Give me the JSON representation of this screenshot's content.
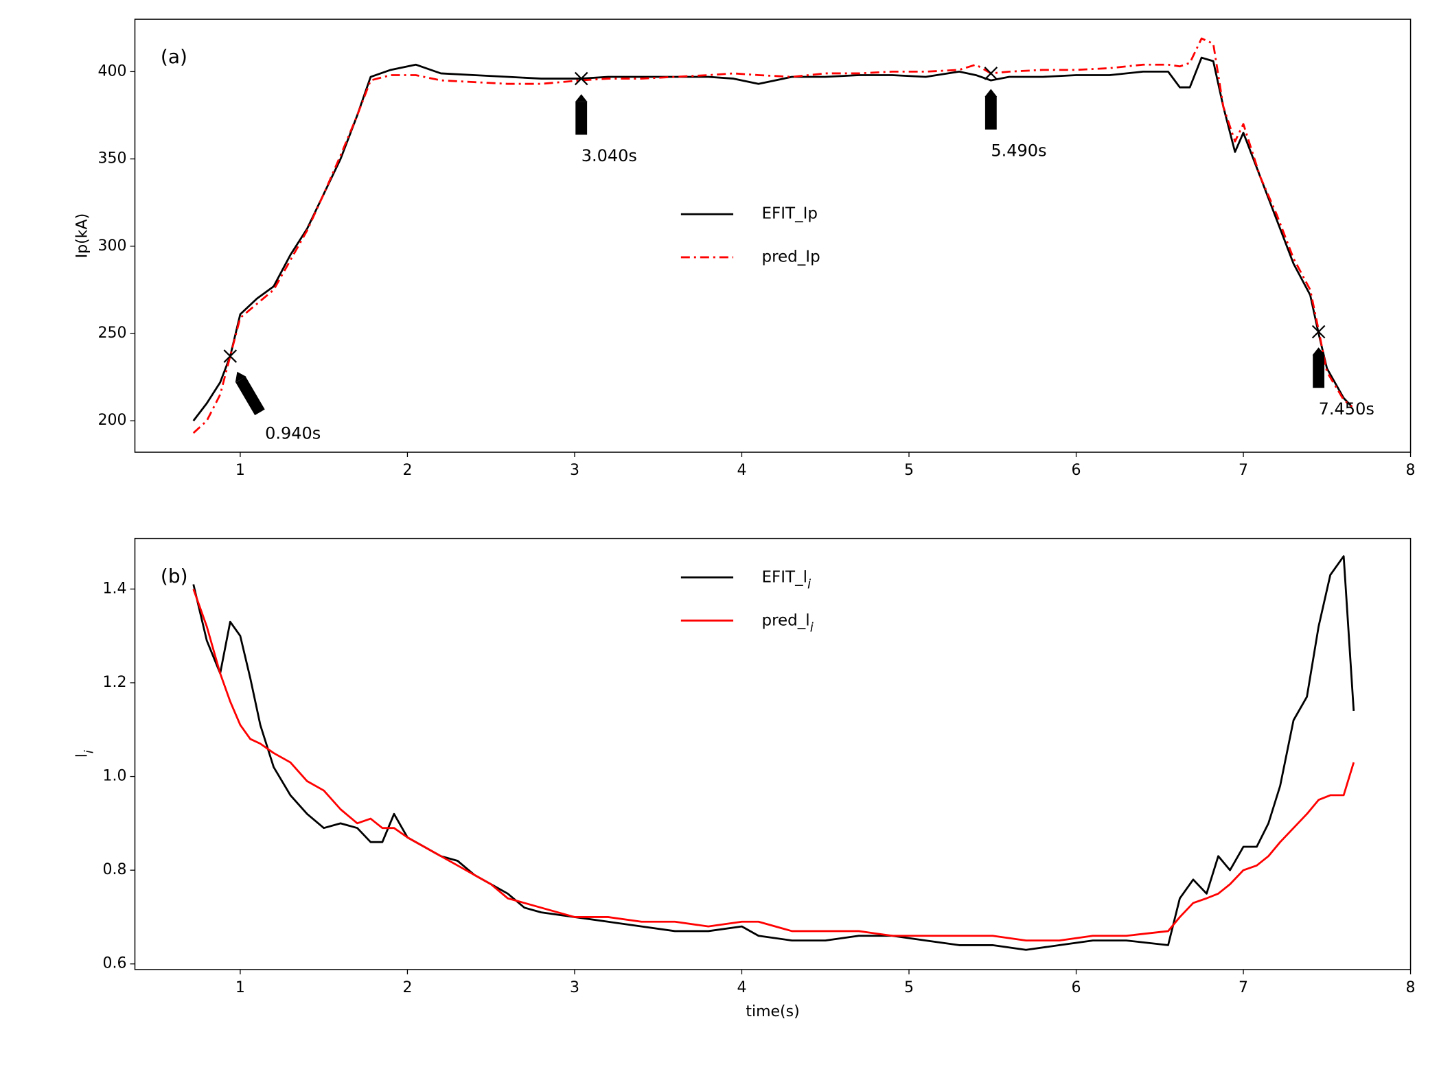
{
  "chart_data": [
    {
      "type": "line",
      "panel_label": "(a)",
      "ylabel": "Ip(kA)",
      "x": [
        0.72,
        0.8,
        0.88,
        0.94,
        1.0,
        1.1,
        1.2,
        1.3,
        1.4,
        1.5,
        1.6,
        1.7,
        1.78,
        1.9,
        2.05,
        2.2,
        2.4,
        2.6,
        2.8,
        3.04,
        3.2,
        3.4,
        3.6,
        3.8,
        3.95,
        4.1,
        4.3,
        4.5,
        4.7,
        4.9,
        5.1,
        5.3,
        5.4,
        5.49,
        5.6,
        5.8,
        6.0,
        6.2,
        6.4,
        6.55,
        6.62,
        6.68,
        6.75,
        6.82,
        6.88,
        6.95,
        7.0,
        7.1,
        7.2,
        7.3,
        7.4,
        7.45,
        7.5,
        7.6,
        7.65
      ],
      "series": [
        {
          "name": "EFIT_Ip",
          "color": "#000000",
          "style": "solid",
          "values": [
            200,
            210,
            222,
            237,
            261,
            270,
            277,
            295,
            310,
            330,
            350,
            375,
            397,
            401,
            404,
            399,
            398,
            397,
            396,
            396,
            397,
            397,
            397,
            397,
            396,
            393,
            397,
            397,
            398,
            398,
            397,
            400,
            398,
            395,
            397,
            397,
            398,
            398,
            400,
            400,
            391,
            391,
            408,
            406,
            380,
            354,
            365,
            340,
            315,
            290,
            272,
            250,
            230,
            213,
            208
          ]
        },
        {
          "name": "pred_Ip",
          "color": "#ff0000",
          "style": "dashdot",
          "values": [
            193,
            200,
            215,
            237,
            259,
            267,
            275,
            292,
            309,
            330,
            352,
            375,
            395,
            398,
            398,
            395,
            394,
            393,
            393,
            395,
            396,
            396,
            397,
            398,
            399,
            398,
            397,
            399,
            399,
            400,
            400,
            401,
            404,
            399,
            400,
            401,
            401,
            402,
            404,
            404,
            403,
            405,
            419,
            416,
            380,
            360,
            370,
            340,
            318,
            293,
            275,
            252,
            228,
            212,
            208
          ]
        }
      ],
      "annotations": [
        {
          "text": "0.940s",
          "x": 0.94,
          "y": 237
        },
        {
          "text": "3.040s",
          "x": 3.04,
          "y": 396
        },
        {
          "text": "5.490s",
          "x": 5.49,
          "y": 399
        },
        {
          "text": "7.450s",
          "x": 7.45,
          "y": 251
        }
      ],
      "xlim": [
        0.37,
        8.0
      ],
      "xticks": [
        1,
        2,
        3,
        4,
        5,
        6,
        7,
        8
      ],
      "ylim": [
        182,
        430
      ],
      "yticks": [
        200,
        250,
        300,
        350,
        400
      ],
      "legend": "center",
      "grid": false
    },
    {
      "type": "line",
      "panel_label": "(b)",
      "ylabel": "li",
      "xlabel": "time(s)",
      "subscript_last": true,
      "x": [
        0.72,
        0.8,
        0.88,
        0.94,
        1.0,
        1.06,
        1.12,
        1.2,
        1.3,
        1.4,
        1.5,
        1.6,
        1.7,
        1.78,
        1.85,
        1.92,
        2.0,
        2.1,
        2.2,
        2.3,
        2.4,
        2.5,
        2.6,
        2.7,
        2.8,
        3.0,
        3.2,
        3.4,
        3.6,
        3.8,
        4.0,
        4.1,
        4.3,
        4.5,
        4.7,
        4.9,
        5.1,
        5.3,
        5.5,
        5.7,
        5.9,
        6.1,
        6.3,
        6.55,
        6.62,
        6.7,
        6.78,
        6.85,
        6.92,
        7.0,
        7.08,
        7.15,
        7.22,
        7.3,
        7.38,
        7.45,
        7.52,
        7.6,
        7.66
      ],
      "series": [
        {
          "name": "EFIT_li",
          "color": "#000000",
          "style": "solid",
          "values": [
            1.41,
            1.29,
            1.22,
            1.33,
            1.3,
            1.21,
            1.11,
            1.02,
            0.96,
            0.92,
            0.89,
            0.9,
            0.89,
            0.86,
            0.86,
            0.92,
            0.87,
            0.85,
            0.83,
            0.82,
            0.79,
            0.77,
            0.75,
            0.72,
            0.71,
            0.7,
            0.69,
            0.68,
            0.67,
            0.67,
            0.68,
            0.66,
            0.65,
            0.65,
            0.66,
            0.66,
            0.65,
            0.64,
            0.64,
            0.63,
            0.64,
            0.65,
            0.65,
            0.64,
            0.74,
            0.78,
            0.75,
            0.83,
            0.8,
            0.85,
            0.85,
            0.9,
            0.98,
            1.12,
            1.17,
            1.32,
            1.43,
            1.47,
            1.14
          ]
        },
        {
          "name": "pred_li",
          "color": "#ff0000",
          "style": "solid",
          "values": [
            1.4,
            1.32,
            1.22,
            1.16,
            1.11,
            1.08,
            1.07,
            1.05,
            1.03,
            0.99,
            0.97,
            0.93,
            0.9,
            0.91,
            0.89,
            0.89,
            0.87,
            0.85,
            0.83,
            0.81,
            0.79,
            0.77,
            0.74,
            0.73,
            0.72,
            0.7,
            0.7,
            0.69,
            0.69,
            0.68,
            0.69,
            0.69,
            0.67,
            0.67,
            0.67,
            0.66,
            0.66,
            0.66,
            0.66,
            0.65,
            0.65,
            0.66,
            0.66,
            0.67,
            0.7,
            0.73,
            0.74,
            0.75,
            0.77,
            0.8,
            0.81,
            0.83,
            0.86,
            0.89,
            0.92,
            0.95,
            0.96,
            0.96,
            1.03
          ]
        }
      ],
      "xlim": [
        0.37,
        8.0
      ],
      "xticks": [
        1,
        2,
        3,
        4,
        5,
        6,
        7,
        8
      ],
      "ylim": [
        0.588,
        1.508
      ],
      "yticks": [
        0.6,
        0.8,
        {
          "value": 1,
          "label": "1.0"
        },
        1.2,
        1.4
      ],
      "legend": "upper center",
      "grid": false
    }
  ]
}
